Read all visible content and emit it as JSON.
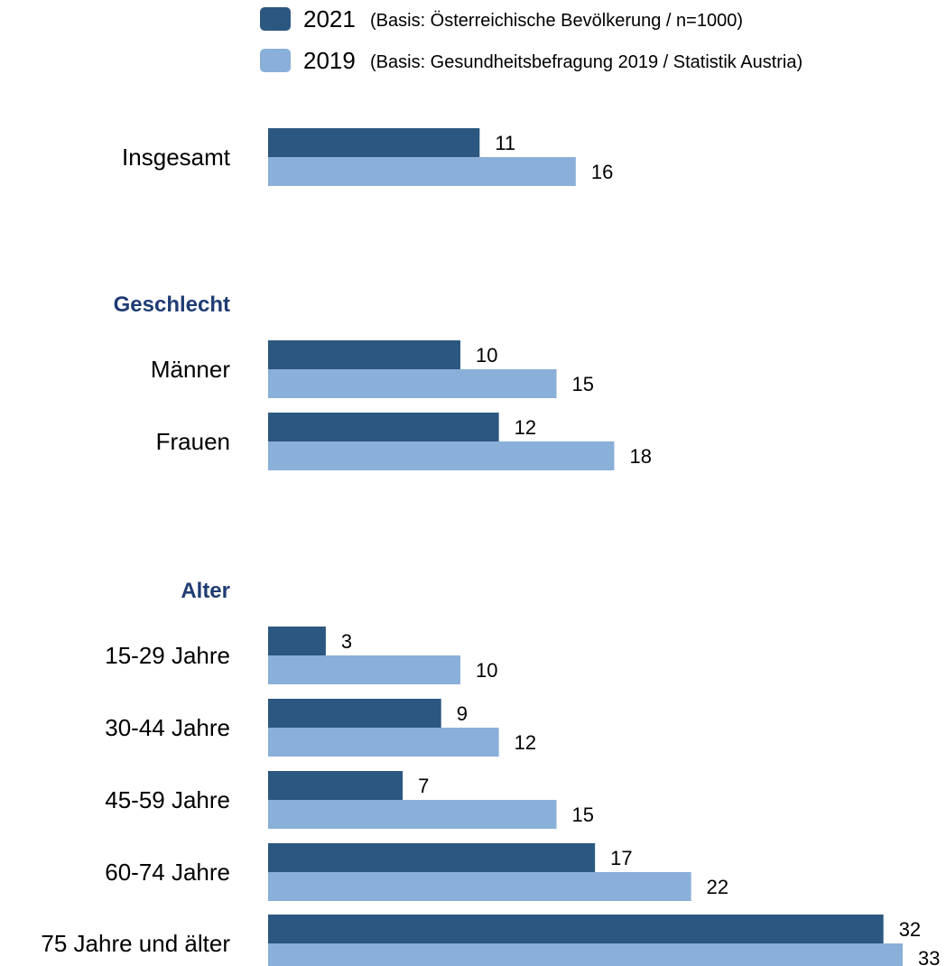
{
  "chart_data": {
    "type": "bar",
    "orientation": "horizontal",
    "legend": [
      {
        "year": "2021",
        "note": "(Basis: Österreichische Bevölkerung / n=1000)",
        "color": "#2c5780"
      },
      {
        "year": "2019",
        "note": "(Basis: Gesundheitsbefragung 2019 / Statistik Austria)",
        "color": "#8aafd9"
      }
    ],
    "group_color": "#1f3c73",
    "series_names": [
      "2021",
      "2019"
    ],
    "rows": [
      {
        "kind": "category",
        "label": "Insgesamt",
        "values": [
          11,
          16
        ]
      },
      {
        "kind": "group",
        "label": "Geschlecht"
      },
      {
        "kind": "category",
        "label": "Männer",
        "values": [
          10,
          15
        ]
      },
      {
        "kind": "category",
        "label": "Frauen",
        "values": [
          12,
          18
        ]
      },
      {
        "kind": "group",
        "label": "Alter"
      },
      {
        "kind": "category",
        "label": "15-29 Jahre",
        "values": [
          3,
          10
        ]
      },
      {
        "kind": "category",
        "label": "30-44 Jahre",
        "values": [
          9,
          12
        ]
      },
      {
        "kind": "category",
        "label": "45-59 Jahre",
        "values": [
          7,
          15
        ]
      },
      {
        "kind": "category",
        "label": "60-74 Jahre",
        "values": [
          17,
          22
        ]
      },
      {
        "kind": "category",
        "label": "75 Jahre und älter",
        "values": [
          32,
          33
        ]
      }
    ],
    "xlim": [
      0,
      33
    ]
  }
}
